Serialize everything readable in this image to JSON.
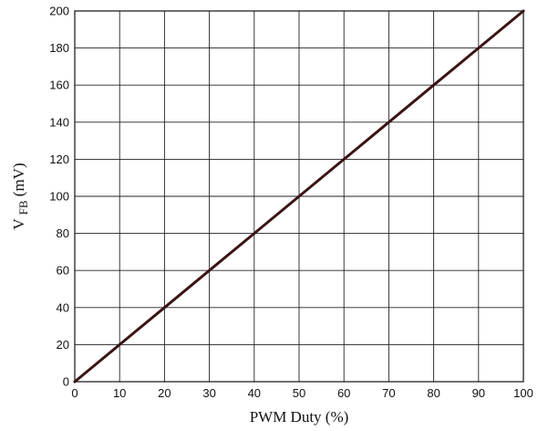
{
  "chart_data": {
    "type": "line",
    "xlabel": "PWM Duty (%)",
    "ylabel": {
      "main": "V",
      "subscript": "FB",
      "unit": " (mV)"
    },
    "xlim": [
      0,
      100
    ],
    "ylim": [
      0,
      200
    ],
    "x_ticks": [
      "0",
      "10",
      "20",
      "30",
      "40",
      "50",
      "60",
      "70",
      "80",
      "90",
      "100"
    ],
    "y_ticks": [
      "0",
      "20",
      "40",
      "60",
      "80",
      "100",
      "120",
      "140",
      "160",
      "180",
      "200"
    ],
    "grid": true,
    "series": [
      {
        "x": [
          0,
          10,
          20,
          30,
          40,
          50,
          60,
          70,
          80,
          90,
          100
        ],
        "y": [
          0,
          20,
          40,
          60,
          80,
          100,
          120,
          140,
          160,
          180,
          200
        ],
        "color": "#3a1414"
      }
    ]
  }
}
